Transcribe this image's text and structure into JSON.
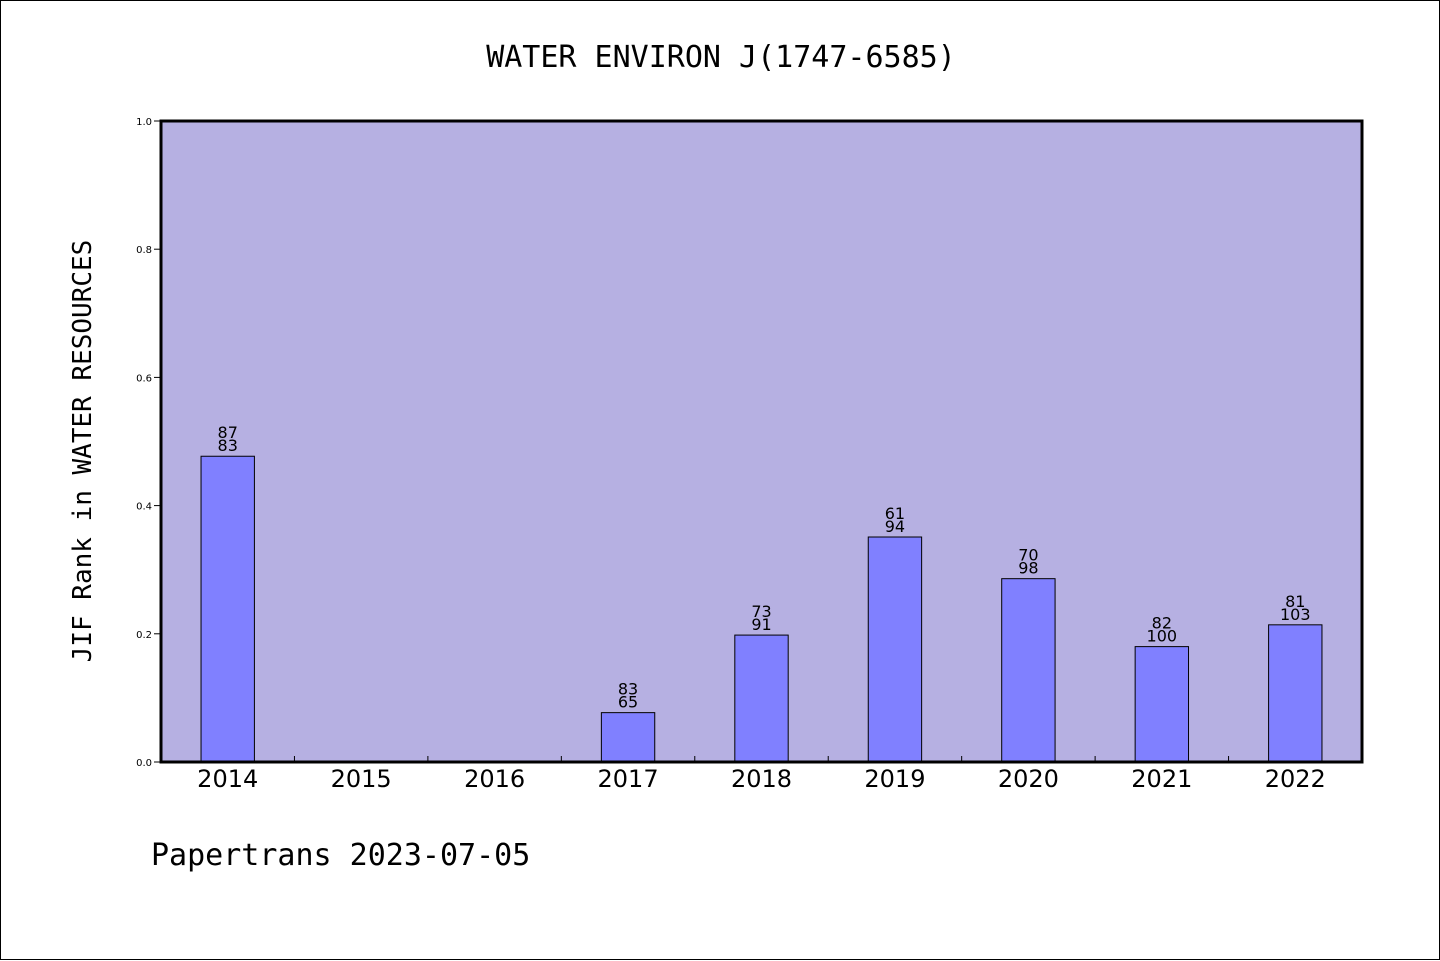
{
  "chart_data": {
    "type": "bar",
    "title": "WATER ENVIRON J(1747-6585)",
    "ylabel": "JIF Rank in WATER RESOURCES",
    "xlabel": "",
    "footer": "Papertrans 2023-07-05",
    "ylim": [
      0,
      1.0
    ],
    "yticks": [
      "0.0",
      "0.2",
      "0.4",
      "0.6",
      "0.8",
      "1.0"
    ],
    "categories": [
      "2014",
      "2015",
      "2016",
      "2017",
      "2018",
      "2019",
      "2020",
      "2021",
      "2022"
    ],
    "values": [
      0.477,
      null,
      null,
      0.077,
      0.198,
      0.351,
      0.286,
      0.18,
      0.214
    ],
    "labels_top": [
      "87",
      "",
      "",
      "83",
      "73",
      "61",
      "70",
      "82",
      "81"
    ],
    "labels_bottom": [
      "83",
      "",
      "",
      "65",
      "91",
      "94",
      "98",
      "100",
      "103"
    ],
    "grid": false,
    "colors": {
      "plot_background": "#b6b0e2",
      "bar_fill": "#8080ff",
      "bar_stroke": "#000000"
    }
  }
}
